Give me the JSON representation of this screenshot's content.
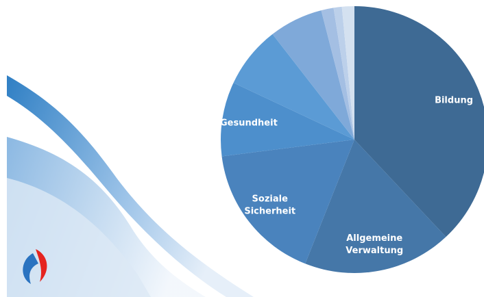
{
  "chart_data": {
    "type": "pie",
    "categories": [
      "Bildung",
      "Allgemeine Verwaltung",
      "Soziale Sicherheit",
      "Gesundheit",
      null,
      null,
      null,
      null,
      null
    ],
    "values": [
      38,
      18,
      17,
      9,
      7.5,
      6.5,
      1.5,
      1,
      1.5
    ],
    "colors": [
      "#3e6a94",
      "#4577a8",
      "#4a83bd",
      "#4d8fcc",
      "#5b9bd5",
      "#7fa9d9",
      "#a4bfe3",
      "#bcd0ea",
      "#d4e1f0"
    ]
  }
}
